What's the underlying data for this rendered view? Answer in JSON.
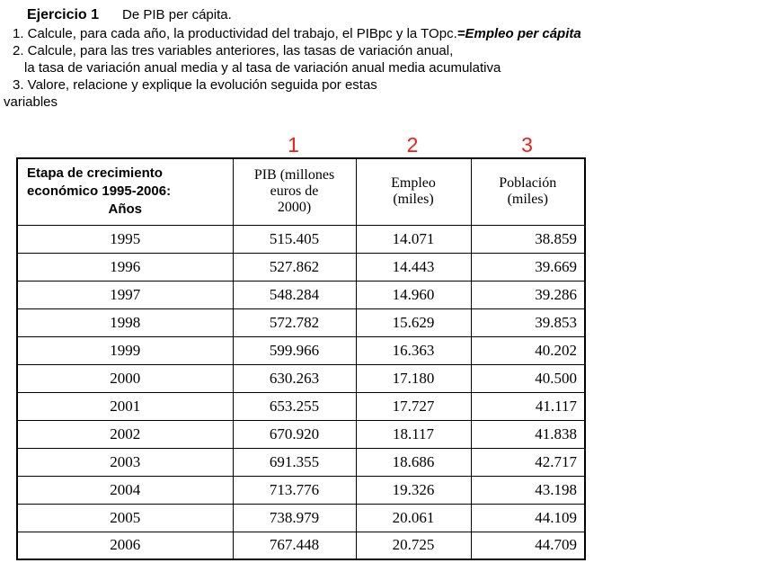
{
  "header": {
    "title": "Ejercicio 1",
    "subtitle": "De PIB per cápita."
  },
  "instructions": {
    "line1_main": "1. Calcule, para cada año, la productividad del trabajo, el PIBpc y la TOpc.",
    "line1_em": "=Empleo per cápita",
    "line2": "2. Calcule, para las tres variables anteriores, las tasas de variación anual,",
    "line3": "la tasa de variación anual media y al tasa de variación anual media acumulativa",
    "line4": "3. Valore, relacione y explique la evolución seguida por estas",
    "line5": "variables"
  },
  "markers": {
    "labels": [
      "1",
      "2",
      "3"
    ],
    "color": "#ee1c1c"
  },
  "table": {
    "headers": [
      {
        "lines": [
          "Etapa de crecimiento",
          "económico 1995-2006:",
          "Años"
        ]
      },
      {
        "lines": [
          "PIB (millones",
          "euros de",
          "2000)"
        ]
      },
      {
        "lines": [
          "Empleo",
          "(miles)"
        ]
      },
      {
        "lines": [
          "Población",
          "(miles)"
        ]
      }
    ],
    "rows": [
      {
        "year": "1995",
        "pib": "515.405",
        "empleo": "14.071",
        "poblacion": "38.859"
      },
      {
        "year": "1996",
        "pib": "527.862",
        "empleo": "14.443",
        "poblacion": "39.669"
      },
      {
        "year": "1997",
        "pib": "548.284",
        "empleo": "14.960",
        "poblacion": "39.286"
      },
      {
        "year": "1998",
        "pib": "572.782",
        "empleo": "15.629",
        "poblacion": "39.853"
      },
      {
        "year": "1999",
        "pib": "599.966",
        "empleo": "16.363",
        "poblacion": "40.202"
      },
      {
        "year": "2000",
        "pib": "630.263",
        "empleo": "17.180",
        "poblacion": "40.500"
      },
      {
        "year": "2001",
        "pib": "653.255",
        "empleo": "17.727",
        "poblacion": "41.117"
      },
      {
        "year": "2002",
        "pib": "670.920",
        "empleo": "18.117",
        "poblacion": "41.838"
      },
      {
        "year": "2003",
        "pib": "691.355",
        "empleo": "18.686",
        "poblacion": "42.717"
      },
      {
        "year": "2004",
        "pib": "713.776",
        "empleo": "19.326",
        "poblacion": "43.198"
      },
      {
        "year": "2005",
        "pib": "738.979",
        "empleo": "20.061",
        "poblacion": "44.109"
      },
      {
        "year": "2006",
        "pib": "767.448",
        "empleo": "20.725",
        "poblacion": "44.709"
      }
    ]
  }
}
